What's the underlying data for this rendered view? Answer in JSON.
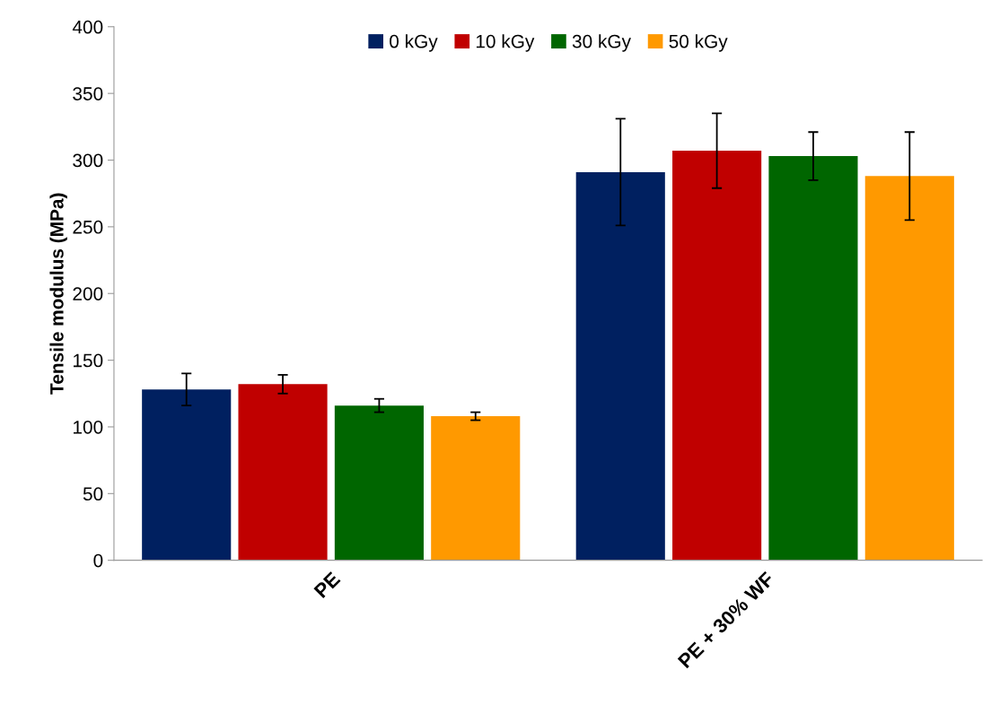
{
  "chart_data": {
    "type": "bar",
    "ylabel": "Tensile modulus (MPa)",
    "categories": [
      "PE",
      "PE + 30% WF"
    ],
    "series": [
      {
        "name": "0 kGy",
        "color": "#002060",
        "values": [
          128,
          291
        ],
        "errors": [
          12,
          40
        ]
      },
      {
        "name": "10 kGy",
        "color": "#c00000",
        "values": [
          132,
          307
        ],
        "errors": [
          7,
          28
        ]
      },
      {
        "name": "30 kGy",
        "color": "#006600",
        "values": [
          116,
          303
        ],
        "errors": [
          5,
          18
        ]
      },
      {
        "name": "50 kGy",
        "color": "#ff9900",
        "values": [
          108,
          288
        ],
        "errors": [
          3,
          33
        ]
      }
    ],
    "ylim": [
      0,
      400
    ],
    "yticks": [
      0,
      50,
      100,
      150,
      200,
      250,
      300,
      350,
      400
    ],
    "grid": false,
    "legend": "top"
  }
}
